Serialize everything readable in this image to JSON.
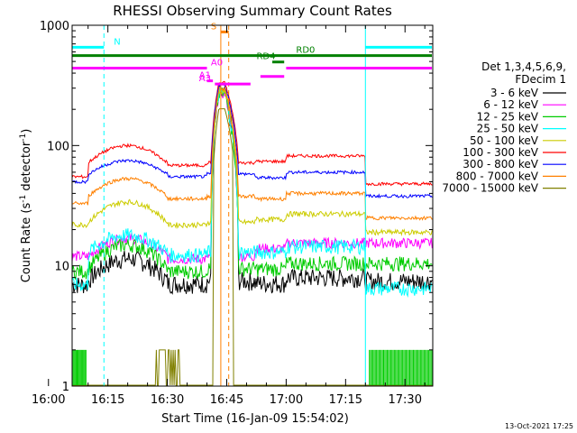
{
  "chart_data": {
    "type": "line",
    "title": "RHESSI Observing Summary Count Rates",
    "xlabel": "Start Time (16-Jan-09 15:54:02)",
    "ylabel_main": "Count Rate (s",
    "ylabel_sup1": "-1",
    "ylabel_mid": " detector",
    "ylabel_sup2": "-1",
    "ylabel_end": ")",
    "yscale": "log",
    "ylim": [
      1,
      1000
    ],
    "xlim_minutes": [
      5.97,
      97.0
    ],
    "x_tick_labels": [
      {
        "label": "16:00",
        "minute": 0
      },
      {
        "label": "16:15",
        "minute": 15
      },
      {
        "label": "16:30",
        "minute": 30
      },
      {
        "label": "16:45",
        "minute": 45
      },
      {
        "label": "17:00",
        "minute": 60
      },
      {
        "label": "17:15",
        "minute": 75
      },
      {
        "label": "17:30",
        "minute": 90
      }
    ],
    "y_tick_labels": [
      {
        "label": "1",
        "value": 1
      },
      {
        "label": "10",
        "value": 10
      },
      {
        "label": "100",
        "value": 100
      },
      {
        "label": "1000",
        "value": 1000
      }
    ],
    "legend_header": [
      "Det 1,3,4,5,6,9,",
      "FDecim 1"
    ],
    "legend_placement": "right",
    "timestamp": "13-Oct-2021 17:25",
    "series": [
      {
        "name": "3 - 6 keV",
        "color": "#000000",
        "base": 7.5,
        "hump": 11.5,
        "pre": 7,
        "post": 8.0,
        "tail": 7.5,
        "noise": 0.18
      },
      {
        "name": "6 - 12 keV",
        "color": "#ff00ff",
        "base": 12,
        "hump": 17,
        "pre": 12,
        "post": 15.5,
        "tail": 15.5,
        "noise": 0.1
      },
      {
        "name": "12 - 25 keV",
        "color": "#00cc00",
        "base": 9.5,
        "hump": 15,
        "pre": 9,
        "post": 10.5,
        "tail": 10.5,
        "noise": 0.14
      },
      {
        "name": "25 - 50 keV",
        "color": "#00ffff",
        "base": 13,
        "hump": 18,
        "pre": 7,
        "post": 14.5,
        "tail": 6.5,
        "noise": 0.14
      },
      {
        "name": "50 - 100 keV",
        "color": "#cccc00",
        "base": 23,
        "hump": 34,
        "pre": 22,
        "post": 27,
        "tail": 19,
        "noise": 0.05
      },
      {
        "name": "100 - 300 keV",
        "color": "#ff0000",
        "base": 72,
        "hump": 100,
        "pre": 55,
        "post": 82,
        "tail": 48,
        "noise": 0.03
      },
      {
        "name": "300 - 800 keV",
        "color": "#0000ff",
        "base": 58,
        "hump": 75,
        "pre": 50,
        "post": 60,
        "tail": 38,
        "noise": 0.03
      },
      {
        "name": "800 - 7000 keV",
        "color": "#ff8000",
        "base": 38,
        "hump": 53,
        "pre": 33,
        "post": 40,
        "tail": 25,
        "noise": 0.035
      },
      {
        "name": "7000 - 15000 keV",
        "color": "#808000",
        "base": 1,
        "hump": 1,
        "pre": 1,
        "post": 1,
        "tail": 1,
        "noise": 0
      }
    ],
    "flag_bars": [
      {
        "label": "N",
        "color": "#00ffff",
        "y": 657,
        "start": 5.97,
        "end": 14.0,
        "label_at": 16.5
      },
      {
        "label": "",
        "color": "#00ffff",
        "y": 657,
        "start": 80.0,
        "end": 97.0,
        "label_at": null
      },
      {
        "label": "RD0",
        "color": "#008000",
        "y": 560,
        "start": 5.97,
        "end": 97.0,
        "label_at": 62.5
      },
      {
        "label": "S",
        "color": "#ff8000",
        "y": 880,
        "start": 43.5,
        "end": 45.5,
        "label_at": 41.0
      },
      {
        "label": "RD4",
        "color": "#008000",
        "y": 495,
        "start": 56.5,
        "end": 59.5,
        "label_at": 52.5
      },
      {
        "label": "A0",
        "color": "#ff00ff",
        "y": 440,
        "start": 5.97,
        "end": 40.0,
        "label_at": 41.0
      },
      {
        "label": "",
        "color": "#ff00ff",
        "y": 440,
        "start": 60.0,
        "end": 97.0,
        "label_at": null
      },
      {
        "label": "",
        "color": "#ff00ff",
        "y": 375,
        "start": 53.5,
        "end": 59.5,
        "label_at": null
      },
      {
        "label": "A1",
        "color": "#ff00ff",
        "y": 345,
        "start": 40.0,
        "end": 41.5,
        "label_at": 38.0
      },
      {
        "label": "A3",
        "color": "#ff00ff",
        "y": 325,
        "start": 42.0,
        "end": 51.0,
        "label_at": 38.0
      }
    ],
    "vertical_markers": [
      {
        "minute": 14.0,
        "color": "#00ffff",
        "dash": true
      },
      {
        "minute": 80.0,
        "color": "#00ffff",
        "dash": false
      },
      {
        "minute": 97.0,
        "color": "#00ffff",
        "dash": true
      },
      {
        "minute": 43.5,
        "color": "#ff8000",
        "dash": false
      },
      {
        "minute": 45.5,
        "color": "#ff8000",
        "dash": true
      }
    ]
  }
}
